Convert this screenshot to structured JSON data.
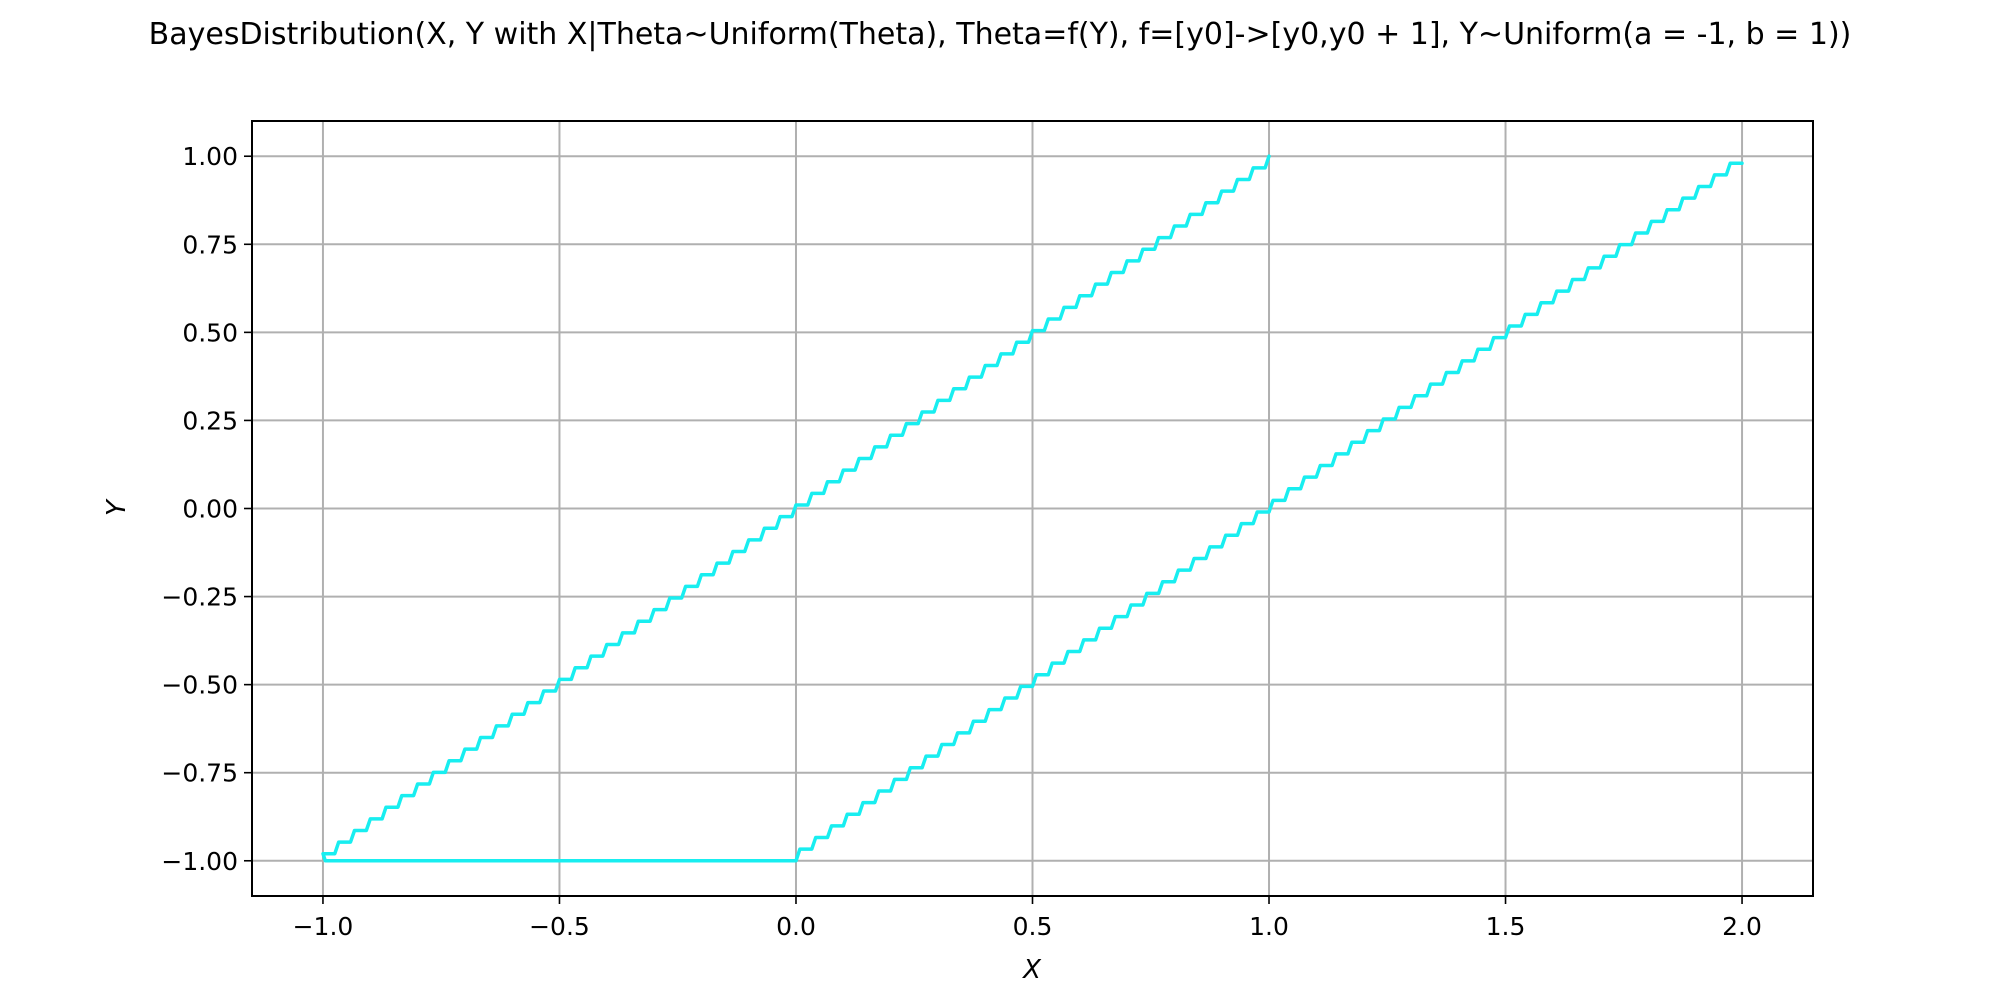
{
  "chart_data": {
    "type": "line",
    "title": "BayesDistribution(X, Y with X|Theta~Uniform(Theta), Theta=f(Y), f=[y0]->[y0,y0 + 1], Y~Uniform(a = -1, b = 1))",
    "xlabel": "X",
    "ylabel": "Y",
    "xlim": [
      -1.15,
      2.15
    ],
    "ylim": [
      -1.1,
      1.1
    ],
    "grid": true,
    "x_ticks": [
      -1.0,
      -0.5,
      0.0,
      0.5,
      1.0,
      1.5,
      2.0
    ],
    "x_tick_labels": [
      "−1.0",
      "−0.5",
      "0.0",
      "0.5",
      "1.0",
      "1.5",
      "2.0"
    ],
    "y_ticks": [
      1.0,
      0.75,
      0.5,
      0.25,
      0.0,
      -0.25,
      -0.5,
      -0.75,
      -1.0
    ],
    "y_tick_labels": [
      "1.00",
      "0.75",
      "0.50",
      "0.25",
      "0.00",
      "−0.25",
      "−0.50",
      "−0.75",
      "−1.00"
    ],
    "series": [
      {
        "color": "#18eef0",
        "description_points": {
          "upper_left_edge_start": [
            1.0,
            1.0
          ],
          "upper_left_edge_end": [
            -1.0,
            -0.98
          ],
          "bottom_edge_start": [
            -0.98,
            -1.0
          ],
          "bottom_edge_end": [
            0.0,
            -1.0
          ],
          "right_edge_end": [
            2.0,
            0.98
          ]
        },
        "x": [
          1.0,
          -1.0,
          -0.98,
          0.0,
          2.0
        ],
        "y": [
          1.0,
          -0.98,
          -1.0,
          -1.0,
          0.98
        ]
      }
    ]
  }
}
